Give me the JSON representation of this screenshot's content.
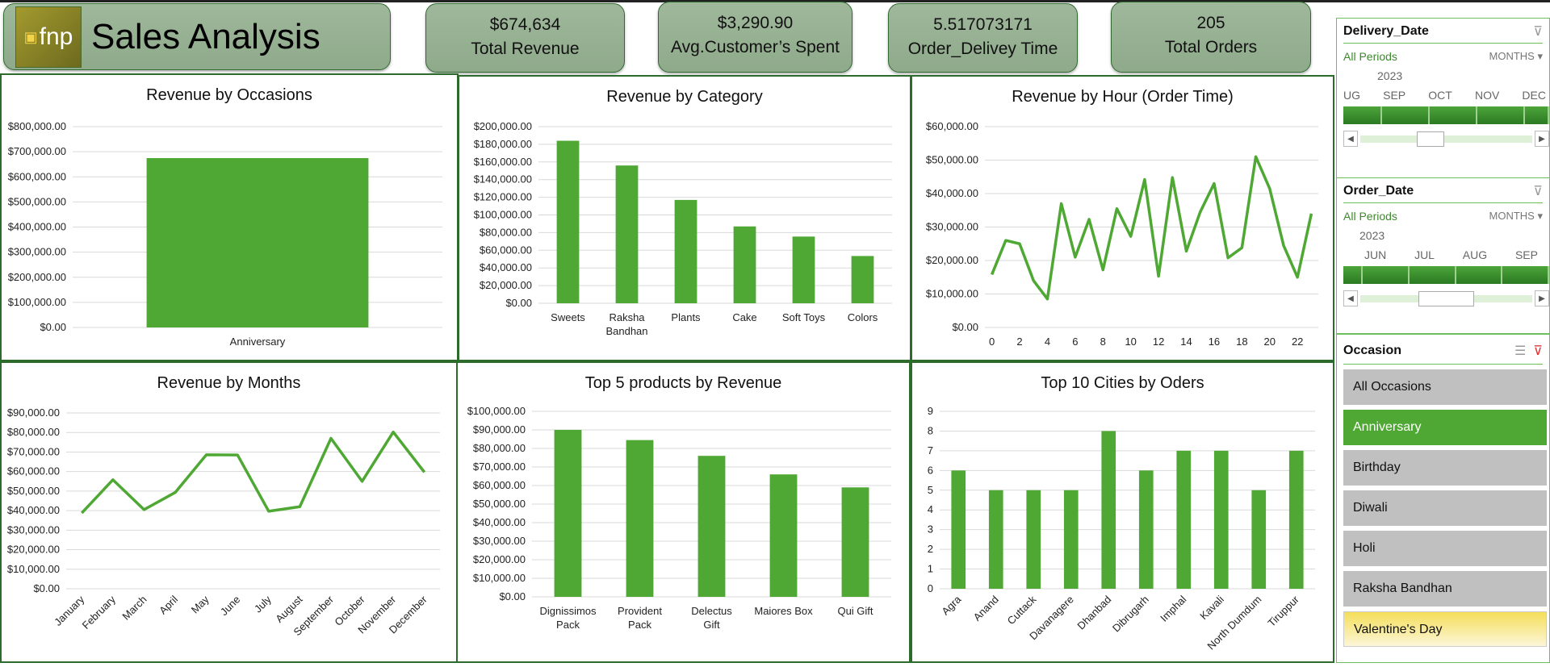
{
  "header": {
    "logo_text": "fnp",
    "title": "Sales Analysis"
  },
  "kpis": [
    {
      "value": "$674,634",
      "label": "Total Revenue"
    },
    {
      "value": "$3,290.90",
      "label": "Avg.Customer’s Spent"
    },
    {
      "value": "5.517073171",
      "label": "Order_Delivey Time"
    },
    {
      "value": "205",
      "label": "Total Orders"
    }
  ],
  "colors": {
    "bar": "#4ea833",
    "panel_border": "#2d6b2d",
    "accent": "#3d8a2e"
  },
  "slicers": {
    "delivery": {
      "title": "Delivery_Date",
      "all": "All Periods",
      "level": "MONTHS",
      "year": "2023",
      "months": [
        "UG",
        "SEP",
        "OCT",
        "NOV",
        "DEC"
      ],
      "clear_icon": "filter-clear-icon"
    },
    "order": {
      "title": "Order_Date",
      "all": "All Periods",
      "level": "MONTHS",
      "year": "2023",
      "months": [
        "JUN",
        "JUL",
        "AUG",
        "SEP"
      ],
      "clear_icon": "filter-clear-icon"
    },
    "occasion": {
      "title": "Occasion",
      "selected": "Anniversary",
      "items": [
        "All Occasions",
        "Anniversary",
        "Birthday",
        "Diwali",
        "Holi",
        "Raksha Bandhan",
        "Valentine's Day"
      ]
    }
  },
  "chart_data": [
    {
      "type": "bar",
      "title": "Revenue by Occasions",
      "categories": [
        "Anniversary"
      ],
      "values": [
        674634
      ],
      "ylim": [
        0,
        800000
      ],
      "yticks": [
        0,
        100000,
        200000,
        300000,
        400000,
        500000,
        600000,
        700000,
        800000
      ],
      "ytick_labels": [
        "$0.00",
        "$100,000.00",
        "$200,000.00",
        "$300,000.00",
        "$400,000.00",
        "$500,000.00",
        "$600,000.00",
        "$700,000.00",
        "$800,000.00"
      ],
      "grid": true
    },
    {
      "type": "bar",
      "title": "Revenue by Category",
      "categories": [
        "Sweets",
        "Raksha Bandhan",
        "Plants",
        "Cake",
        "Soft Toys",
        "Colors"
      ],
      "values": [
        184000,
        156000,
        117000,
        87000,
        75500,
        53500
      ],
      "ylim": [
        0,
        200000
      ],
      "yticks": [
        0,
        20000,
        40000,
        60000,
        80000,
        100000,
        120000,
        140000,
        160000,
        180000,
        200000
      ],
      "ytick_labels": [
        "$0.00",
        "$20,000.00",
        "$40,000.00",
        "$60,000.00",
        "$80,000.00",
        "$100,000.00",
        "$120,000.00",
        "$140,000.00",
        "$160,000.00",
        "$180,000.00",
        "$200,000.00"
      ],
      "grid": true
    },
    {
      "type": "line",
      "title": "Revenue by Hour (Order Time)",
      "categories": [
        "0",
        "1",
        "2",
        "3",
        "4",
        "5",
        "6",
        "7",
        "8",
        "9",
        "10",
        "11",
        "12",
        "13",
        "14",
        "15",
        "16",
        "17",
        "18",
        "19",
        "20",
        "21",
        "22",
        "23"
      ],
      "xtick_labels": [
        "0",
        "",
        "2",
        "",
        "4",
        "",
        "6",
        "",
        "8",
        "",
        "10",
        "",
        "12",
        "",
        "14",
        "",
        "16",
        "",
        "18",
        "",
        "20",
        "",
        "22",
        ""
      ],
      "values": [
        15800,
        26000,
        25000,
        14000,
        8500,
        37000,
        21000,
        32300,
        17200,
        35500,
        27200,
        44200,
        15300,
        44800,
        22800,
        34500,
        43000,
        20800,
        23800,
        51000,
        41500,
        24500,
        15000,
        34000
      ],
      "ylim": [
        0,
        60000
      ],
      "yticks": [
        0,
        10000,
        20000,
        30000,
        40000,
        50000,
        60000
      ],
      "ytick_labels": [
        "$0.00",
        "$10,000.00",
        "$20,000.00",
        "$30,000.00",
        "$40,000.00",
        "$50,000.00",
        "$60,000.00"
      ],
      "grid": true
    },
    {
      "type": "line",
      "title": "Revenue by Months",
      "categories": [
        "January",
        "February",
        "March",
        "April",
        "May",
        "June",
        "July",
        "August",
        "September",
        "October",
        "November",
        "December"
      ],
      "values": [
        38800,
        55800,
        40500,
        49300,
        68600,
        68500,
        39700,
        42000,
        77000,
        55000,
        80200,
        59700
      ],
      "ylim": [
        0,
        90000
      ],
      "yticks": [
        0,
        10000,
        20000,
        30000,
        40000,
        50000,
        60000,
        70000,
        80000,
        90000
      ],
      "ytick_labels": [
        "$0.00",
        "$10,000.00",
        "$20,000.00",
        "$30,000.00",
        "$40,000.00",
        "$50,000.00",
        "$60,000.00",
        "$70,000.00",
        "$80,000.00",
        "$90,000.00"
      ],
      "grid": true,
      "rotate_labels": true
    },
    {
      "type": "bar",
      "title": "Top 5 products by Revenue",
      "categories": [
        "Dignissimos Pack",
        "Provident Pack",
        "Delectus Gift",
        "Maiores Box",
        "Qui Gift"
      ],
      "values": [
        90000,
        84500,
        76000,
        66000,
        59000
      ],
      "ylim": [
        0,
        100000
      ],
      "yticks": [
        0,
        10000,
        20000,
        30000,
        40000,
        50000,
        60000,
        70000,
        80000,
        90000,
        100000
      ],
      "ytick_labels": [
        "$0.00",
        "$10,000.00",
        "$20,000.00",
        "$30,000.00",
        "$40,000.00",
        "$50,000.00",
        "$60,000.00",
        "$70,000.00",
        "$80,000.00",
        "$90,000.00",
        "$100,000.00"
      ],
      "grid": true
    },
    {
      "type": "bar",
      "title": "Top 10 Cities by Oders",
      "categories": [
        "Agra",
        "Anand",
        "Cuttack",
        "Davanagere",
        "Dhanbad",
        "Dibrugarh",
        "Imphal",
        "Kavali",
        "North Dumdum",
        "Tiruppur"
      ],
      "values": [
        6,
        5,
        5,
        5,
        8,
        6,
        7,
        7,
        5,
        7
      ],
      "ylim": [
        0,
        9
      ],
      "yticks": [
        0,
        1,
        2,
        3,
        4,
        5,
        6,
        7,
        8,
        9
      ],
      "ytick_labels": [
        "0",
        "1",
        "2",
        "3",
        "4",
        "5",
        "6",
        "7",
        "8",
        "9"
      ],
      "grid": true,
      "rotate_labels": true
    }
  ]
}
